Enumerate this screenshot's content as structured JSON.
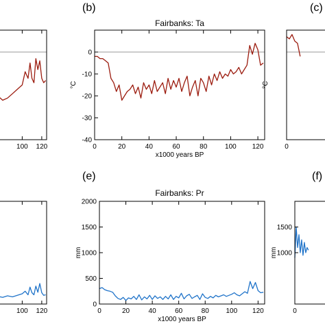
{
  "panels": [
    {
      "letter": "(b)",
      "title": "Fairbanks: Ta"
    },
    {
      "letter": "(c)"
    },
    {
      "letter": "(e)",
      "title": "Fairbanks: Pr"
    },
    {
      "letter": "(f)"
    }
  ],
  "colors": {
    "temperature_line": "#9b1b0e",
    "precip_line": "#1f73c9",
    "zero_line": "#999999",
    "axes": "#000000"
  },
  "chart_data": [
    {
      "panel": "left-top (cropped)",
      "type": "line",
      "xlabel": "",
      "ylabel": "",
      "xlim": [
        0,
        125
      ],
      "ylim": [
        -40,
        10
      ],
      "x_ticks": [
        100,
        120
      ],
      "zero_line": true,
      "series": [
        {
          "x": [
            65,
            70,
            75,
            80,
            85,
            90,
            95,
            100,
            103,
            106,
            108,
            110,
            112,
            114,
            116,
            118,
            120,
            122,
            124
          ],
          "y": [
            -15,
            -18,
            -20,
            -22,
            -21,
            -19,
            -17,
            -15,
            -9,
            -12,
            -5,
            -12,
            -14,
            -3,
            -8,
            -4,
            -12,
            -14,
            -13
          ]
        }
      ]
    },
    {
      "panel": "(b)",
      "type": "line",
      "title": "Fairbanks: Ta",
      "xlabel": "x1000 years BP",
      "ylabel": "°C",
      "xlim": [
        0,
        125
      ],
      "ylim": [
        -40,
        10
      ],
      "x_ticks": [
        0,
        20,
        40,
        60,
        80,
        100,
        120
      ],
      "y_ticks": [
        -40,
        -30,
        -20,
        -10,
        0
      ],
      "zero_line": true,
      "series": [
        {
          "x": [
            0,
            2,
            4,
            6,
            8,
            10,
            12,
            14,
            16,
            18,
            20,
            22,
            24,
            26,
            28,
            30,
            32,
            34,
            36,
            38,
            40,
            42,
            44,
            46,
            48,
            50,
            52,
            54,
            56,
            58,
            60,
            62,
            64,
            66,
            68,
            70,
            72,
            74,
            76,
            78,
            80,
            82,
            84,
            86,
            88,
            90,
            92,
            94,
            96,
            98,
            100,
            102,
            104,
            106,
            108,
            110,
            112,
            114,
            116,
            118,
            120,
            122,
            124
          ],
          "y": [
            -2,
            -2,
            -3,
            -3,
            -4,
            -5,
            -12,
            -14,
            -18,
            -15,
            -22,
            -20,
            -18,
            -17,
            -15,
            -19,
            -16,
            -21,
            -14,
            -17,
            -15,
            -19,
            -13,
            -18,
            -16,
            -14,
            -19,
            -12,
            -17,
            -13,
            -16,
            -12,
            -18,
            -14,
            -11,
            -20,
            -16,
            -13,
            -20,
            -12,
            -14,
            -18,
            -11,
            -15,
            -10,
            -13,
            -9,
            -12,
            -10,
            -11,
            -8,
            -10,
            -9,
            -7,
            -10,
            -8,
            -6,
            3,
            -1,
            4,
            1,
            -6,
            -5
          ]
        }
      ]
    },
    {
      "panel": "(c) (cropped)",
      "type": "line",
      "ylabel": "°C",
      "xlim": [
        0,
        125
      ],
      "ylim": [
        -40,
        10
      ],
      "x_ticks": [
        0
      ],
      "zero_line": true,
      "series": [
        {
          "x": [
            0,
            2,
            4,
            6,
            8,
            10
          ],
          "y": [
            7,
            6,
            8,
            5,
            4,
            -2
          ]
        }
      ]
    },
    {
      "panel": "left-bottom (cropped)",
      "type": "line",
      "xlim": [
        0,
        125
      ],
      "ylim": [
        0,
        2000
      ],
      "x_ticks": [
        100,
        120
      ],
      "series": [
        {
          "x": [
            70,
            75,
            80,
            85,
            90,
            95,
            100,
            103,
            106,
            108,
            110,
            112,
            114,
            116,
            118,
            120,
            122,
            124
          ],
          "y": [
            120,
            150,
            130,
            160,
            140,
            170,
            200,
            250,
            180,
            330,
            220,
            180,
            350,
            230,
            400,
            220,
            170,
            180
          ]
        }
      ]
    },
    {
      "panel": "(e)",
      "type": "line",
      "title": "Fairbanks: Pr",
      "xlabel": "x1000 years BP",
      "ylabel": "mm",
      "xlim": [
        0,
        125
      ],
      "ylim": [
        0,
        2000
      ],
      "x_ticks": [
        0,
        20,
        40,
        60,
        80,
        100,
        120
      ],
      "y_ticks": [
        0,
        500,
        1000,
        1500,
        2000
      ],
      "series": [
        {
          "x": [
            0,
            2,
            4,
            6,
            8,
            10,
            12,
            14,
            16,
            18,
            20,
            22,
            24,
            26,
            28,
            30,
            32,
            34,
            36,
            38,
            40,
            42,
            44,
            46,
            48,
            50,
            52,
            54,
            56,
            58,
            60,
            62,
            64,
            66,
            68,
            70,
            72,
            74,
            76,
            78,
            80,
            82,
            84,
            86,
            88,
            90,
            92,
            94,
            96,
            98,
            100,
            102,
            104,
            106,
            108,
            110,
            112,
            114,
            116,
            118,
            120,
            122,
            124
          ],
          "y": [
            300,
            320,
            280,
            260,
            250,
            230,
            160,
            110,
            90,
            130,
            70,
            120,
            100,
            150,
            90,
            180,
            80,
            140,
            100,
            170,
            90,
            160,
            110,
            140,
            90,
            150,
            100,
            180,
            90,
            150,
            120,
            210,
            100,
            160,
            190,
            110,
            140,
            170,
            90,
            200,
            130,
            110,
            150,
            120,
            170,
            140,
            160,
            180,
            150,
            170,
            190,
            220,
            180,
            160,
            200,
            240,
            210,
            440,
            300,
            420,
            260,
            220,
            230
          ]
        }
      ]
    },
    {
      "panel": "(f) (cropped)",
      "type": "line",
      "ylabel": "mm",
      "xlim": [
        0,
        125
      ],
      "ylim": [
        0,
        2000
      ],
      "x_ticks": [
        0
      ],
      "y_ticks": [
        1000,
        1500
      ],
      "series": [
        {
          "x": [
            0,
            1,
            2,
            3,
            4,
            5,
            6,
            7,
            8,
            9,
            10
          ],
          "y": [
            900,
            1500,
            1100,
            1350,
            1000,
            1250,
            950,
            1200,
            1000,
            1100,
            1050
          ]
        }
      ]
    }
  ]
}
